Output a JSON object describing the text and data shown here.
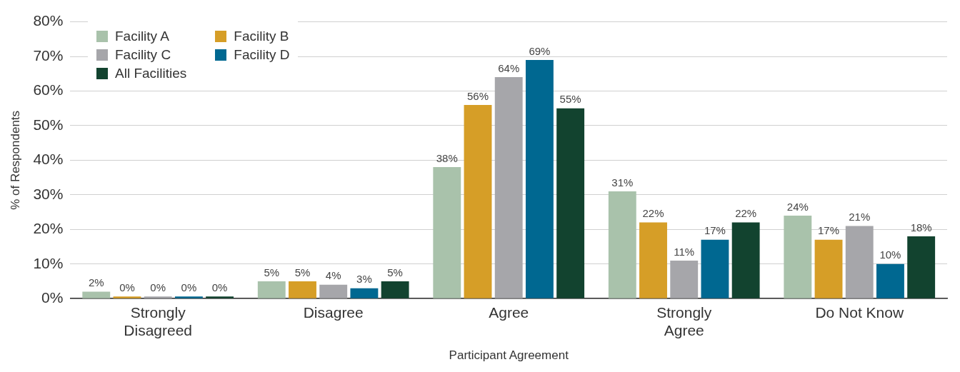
{
  "chart_data": {
    "type": "bar",
    "xlabel": "Participant Agreement",
    "ylabel": "% of Respondents",
    "categories": [
      "Strongly Disagreed",
      "Disagree",
      "Agree",
      "Strongly Agree",
      "Do Not Know"
    ],
    "series": [
      {
        "name": "Facility A",
        "color": "#a9c2ab",
        "values": [
          2,
          5,
          38,
          31,
          24
        ],
        "value_labels": [
          "2%",
          "5%",
          "38%",
          "31%",
          "24%"
        ]
      },
      {
        "name": "Facility B",
        "color": "#d69e27",
        "values": [
          0,
          5,
          56,
          22,
          17
        ],
        "value_labels": [
          "0%",
          "5%",
          "56%",
          "22%",
          "17%"
        ]
      },
      {
        "name": "Facility C",
        "color": "#a6a6aa",
        "values": [
          0,
          4,
          64,
          11,
          21
        ],
        "value_labels": [
          "0%",
          "4%",
          "64%",
          "11%",
          "21%"
        ]
      },
      {
        "name": "Facility D",
        "color": "#006891",
        "values": [
          0,
          3,
          69,
          17,
          10
        ],
        "value_labels": [
          "0%",
          "3%",
          "69%",
          "17%",
          "10%"
        ]
      },
      {
        "name": "All Facilities",
        "color": "#12432f",
        "values": [
          0,
          5,
          55,
          22,
          18
        ],
        "value_labels": [
          "0%",
          "5%",
          "55%",
          "22%",
          "18%"
        ]
      }
    ],
    "ylim": [
      0,
      80
    ],
    "yticks": [
      {
        "value": 0,
        "label": "0%"
      },
      {
        "value": 10,
        "label": "10%"
      },
      {
        "value": 20,
        "label": "20%"
      },
      {
        "value": 30,
        "label": "30%"
      },
      {
        "value": 40,
        "label": "40%"
      },
      {
        "value": 50,
        "label": "50%"
      },
      {
        "value": 60,
        "label": "60%"
      },
      {
        "value": 70,
        "label": "70%"
      },
      {
        "value": 80,
        "label": "80%"
      }
    ],
    "grid": "y",
    "legend": "top left"
  }
}
